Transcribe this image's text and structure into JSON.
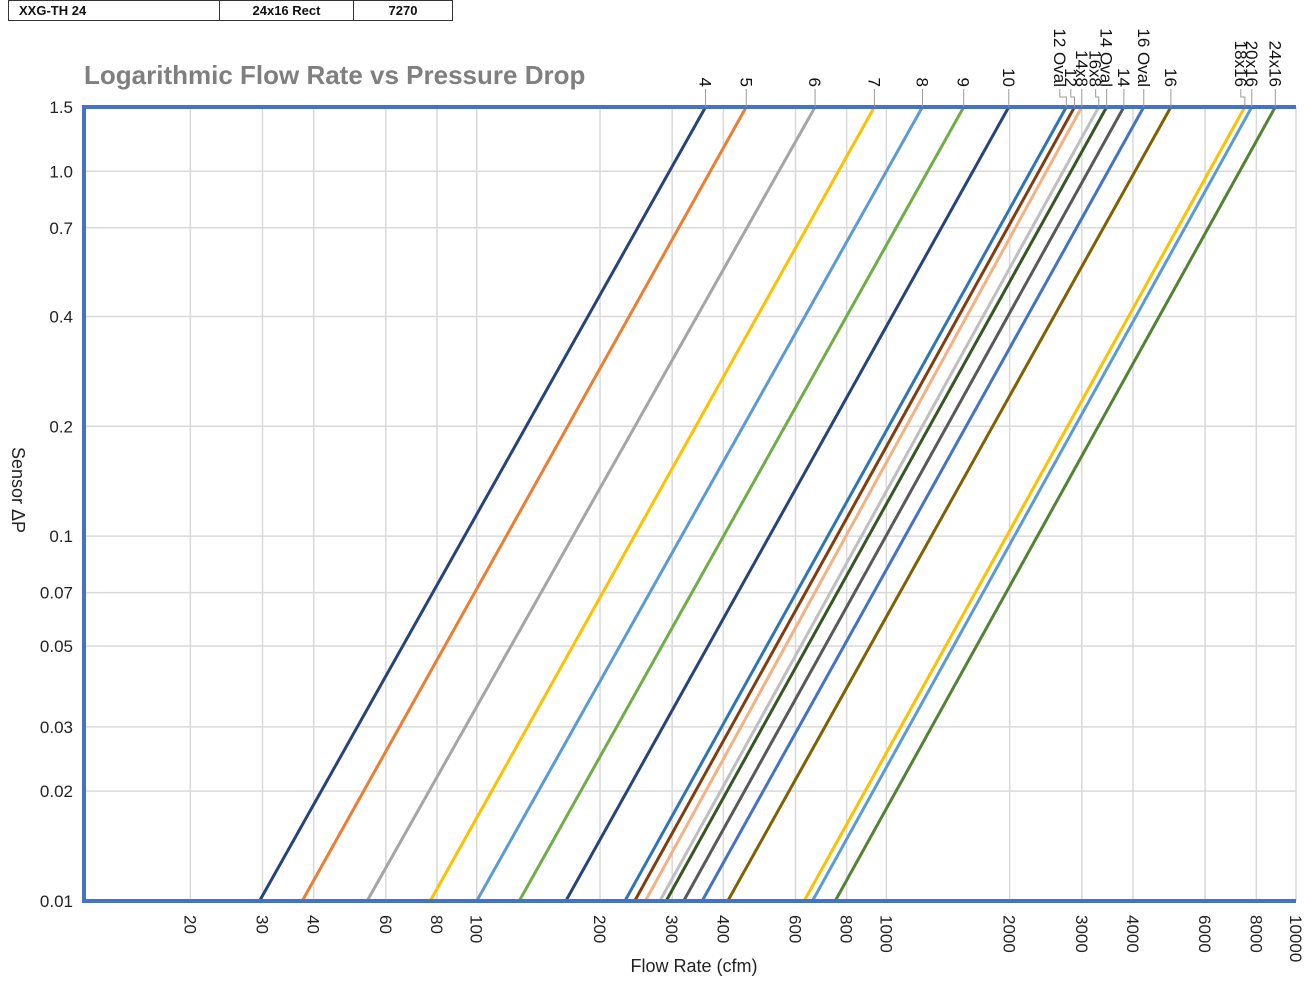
{
  "header_row": {
    "model": "XXG-TH 24",
    "size": "24x16 Rect",
    "value": "7270"
  },
  "colors": {
    "axis": "#4472C4",
    "grid": "#d9d9d9",
    "title": "#7f7f7f"
  },
  "chart_data": {
    "type": "line",
    "title": "Logarithmic Flow Rate vs Pressure Drop",
    "xlabel": "Flow Rate (cfm)",
    "ylabel": "Sensor ΔP",
    "xscale": "log",
    "yscale": "log",
    "xlim": [
      11,
      10000
    ],
    "ylim": [
      0.01,
      1.5
    ],
    "grid": true,
    "legend": "labels along top edge",
    "x_ticks": [
      {
        "value": 20,
        "label": "20"
      },
      {
        "value": 30,
        "label": "30"
      },
      {
        "value": 40,
        "label": "40"
      },
      {
        "value": 60,
        "label": "60"
      },
      {
        "value": 80,
        "label": "80"
      },
      {
        "value": 100,
        "label": "100"
      },
      {
        "value": 200,
        "label": "200"
      },
      {
        "value": 300,
        "label": "300"
      },
      {
        "value": 400,
        "label": "400"
      },
      {
        "value": 600,
        "label": "600"
      },
      {
        "value": 800,
        "label": "800"
      },
      {
        "value": 1000,
        "label": "1000"
      },
      {
        "value": 2000,
        "label": "2000"
      },
      {
        "value": 3000,
        "label": "3000"
      },
      {
        "value": 4000,
        "label": "4000"
      },
      {
        "value": 6000,
        "label": "6000"
      },
      {
        "value": 8000,
        "label": "8000"
      },
      {
        "value": 10000,
        "label": "10000"
      }
    ],
    "y_ticks": [
      {
        "value": 0.01,
        "label": "0.01"
      },
      {
        "value": 0.02,
        "label": "0.02"
      },
      {
        "value": 0.03,
        "label": "0.03"
      },
      {
        "value": 0.05,
        "label": "0.05"
      },
      {
        "value": 0.07,
        "label": "0.07"
      },
      {
        "value": 0.1,
        "label": "0.1"
      },
      {
        "value": 0.2,
        "label": "0.2"
      },
      {
        "value": 0.4,
        "label": "0.4"
      },
      {
        "value": 0.7,
        "label": "0.7"
      },
      {
        "value": 1.0,
        "label": "1.0"
      },
      {
        "value": 1.5,
        "label": "1.5"
      }
    ],
    "series": [
      {
        "name": "4",
        "color": "#264478",
        "x": [
          29.5,
          362
        ],
        "y": [
          0.01,
          1.5
        ]
      },
      {
        "name": "5",
        "color": "#ED7D31",
        "x": [
          37.5,
          455
        ],
        "y": [
          0.01,
          1.5
        ]
      },
      {
        "name": "6",
        "color": "#A5A5A5",
        "x": [
          54,
          670
        ],
        "y": [
          0.01,
          1.5
        ]
      },
      {
        "name": "7",
        "color": "#FFC000",
        "x": [
          77,
          935
        ],
        "y": [
          0.01,
          1.5
        ]
      },
      {
        "name": "8",
        "color": "#5B9BD5",
        "x": [
          100,
          1225
        ],
        "y": [
          0.01,
          1.5
        ]
      },
      {
        "name": "9",
        "color": "#70AD47",
        "x": [
          127,
          1545
        ],
        "y": [
          0.01,
          1.5
        ]
      },
      {
        "name": "10",
        "color": "#264478",
        "x": [
          165,
          1990
        ],
        "y": [
          0.01,
          1.5
        ]
      },
      {
        "name": "12 Oval",
        "color": "#2E75B6",
        "x": [
          230,
          2750
        ],
        "y": [
          0.01,
          1.5
        ]
      },
      {
        "name": "12",
        "color": "#843C0C",
        "x": [
          243,
          2880
        ],
        "y": [
          0.01,
          1.5
        ]
      },
      {
        "name": "14x8",
        "color": "#F4B183",
        "x": [
          258,
          3000
        ],
        "y": [
          0.01,
          1.5
        ]
      },
      {
        "name": "16x8",
        "color": "#BFBFBF",
        "x": [
          280,
          3300
        ],
        "y": [
          0.01,
          1.5
        ]
      },
      {
        "name": "14 Oval",
        "color": "#375623",
        "x": [
          290,
          3450
        ],
        "y": [
          0.01,
          1.5
        ]
      },
      {
        "name": "14",
        "color": "#595959",
        "x": [
          320,
          3800
        ],
        "y": [
          0.01,
          1.5
        ]
      },
      {
        "name": "16 Oval",
        "color": "#4472C4",
        "x": [
          355,
          4250
        ],
        "y": [
          0.01,
          1.5
        ]
      },
      {
        "name": "16",
        "color": "#806000",
        "x": [
          410,
          4950
        ],
        "y": [
          0.01,
          1.5
        ]
      },
      {
        "name": "18x16",
        "color": "#FFC000",
        "x": [
          630,
          7500
        ],
        "y": [
          0.01,
          1.5
        ]
      },
      {
        "name": "20x16",
        "color": "#5B9BD5",
        "x": [
          660,
          7800
        ],
        "y": [
          0.01,
          1.5
        ]
      },
      {
        "name": "24x16",
        "color": "#548235",
        "x": [
          750,
          8900
        ],
        "y": [
          0.01,
          1.5
        ]
      }
    ]
  }
}
